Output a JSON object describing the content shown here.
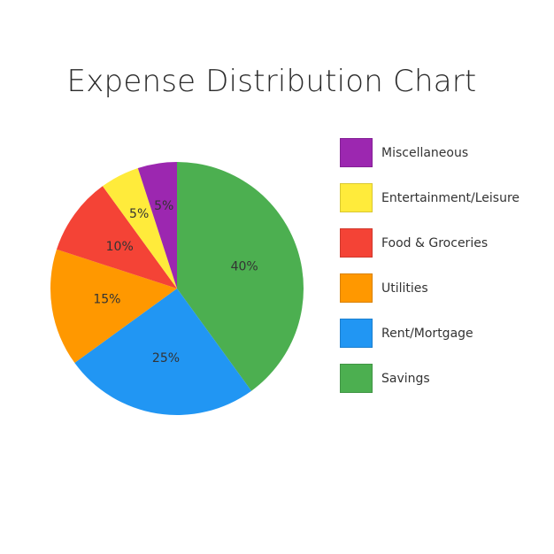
{
  "chart_data": {
    "type": "pie",
    "title": "Expense Distribution Chart",
    "slices": [
      {
        "label": "Savings",
        "value": 40,
        "display": "40%",
        "color": "#4CAF50"
      },
      {
        "label": "Rent/Mortgage",
        "value": 25,
        "display": "25%",
        "color": "#2196F3"
      },
      {
        "label": "Utilities",
        "value": 15,
        "display": "15%",
        "color": "#FF9800"
      },
      {
        "label": "Food & Groceries",
        "value": 10,
        "display": "10%",
        "color": "#F44336"
      },
      {
        "label": "Entertainment/Leisure",
        "value": 5,
        "display": "5%",
        "color": "#FFEB3B"
      },
      {
        "label": "Miscellaneous",
        "value": 5,
        "display": "5%",
        "color": "#9C27B0"
      }
    ],
    "legend": {
      "placement": "right",
      "order": [
        "Miscellaneous",
        "Entertainment/Leisure",
        "Food & Groceries",
        "Utilities",
        "Rent/Mortgage",
        "Savings"
      ]
    }
  }
}
